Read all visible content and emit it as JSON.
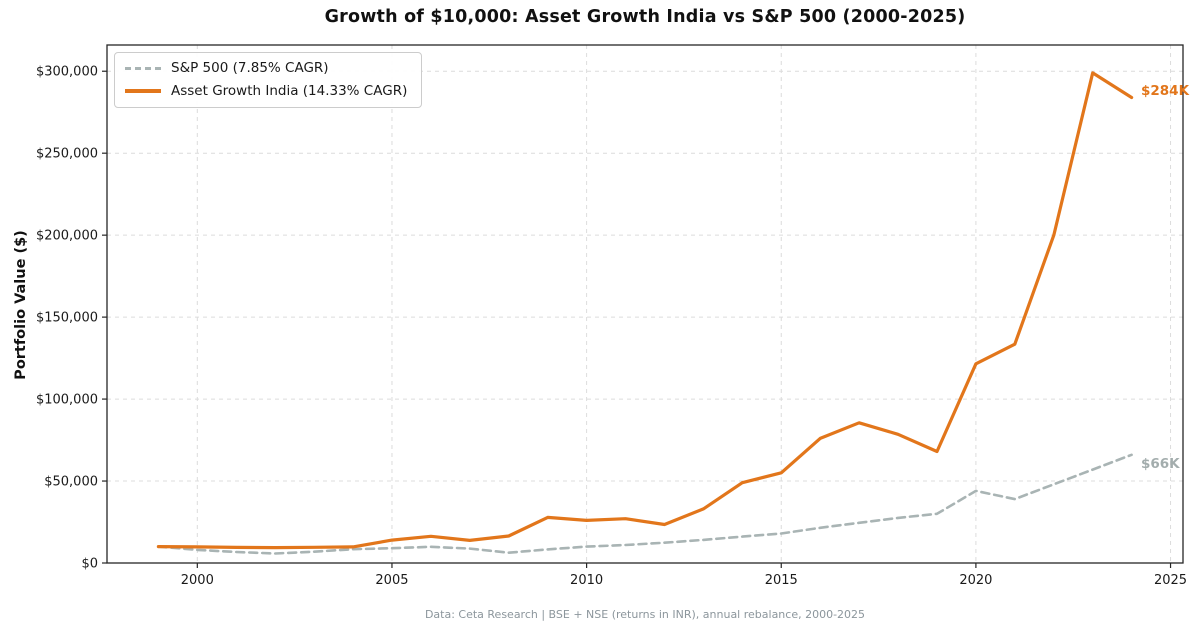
{
  "page": {
    "footer": "Data: Ceta Research | BSE + NSE (returns in INR), annual rebalance, 2000-2025"
  },
  "colors": {
    "background": "#ffffff",
    "grid": "#dcdcdc",
    "spine": "#262626",
    "tick_label": "#1a1a1a",
    "title": "#111111",
    "footer": "#8c969c",
    "sp500_line": "#a9b4b4",
    "india_line": "#e2761b"
  },
  "chart_data": {
    "type": "line",
    "title": "Growth of $10,000: Asset Growth India vs S&P 500 (2000-2025)",
    "xlabel": "",
    "ylabel": "Portfolio Value ($)",
    "x": [
      1999,
      2000,
      2001,
      2002,
      2003,
      2004,
      2005,
      2006,
      2007,
      2008,
      2009,
      2010,
      2011,
      2012,
      2013,
      2014,
      2015,
      2016,
      2017,
      2018,
      2019,
      2020,
      2021,
      2022,
      2023,
      2024
    ],
    "series": [
      {
        "name": "S&P 500 (7.85% CAGR)",
        "color": "#a9b4b4",
        "line_style": "dashed",
        "line_width": 2.6,
        "end_label": "$66K",
        "end_label_color": "#a3adad",
        "values": [
          10000,
          8000,
          6700,
          5800,
          6900,
          8400,
          9000,
          9900,
          8800,
          6300,
          8300,
          10000,
          11000,
          12400,
          14100,
          16100,
          18000,
          21500,
          24500,
          27500,
          30000,
          44000,
          39000,
          48000,
          57000,
          66000
        ]
      },
      {
        "name": "Asset Growth India (14.33% CAGR)",
        "color": "#e2761b",
        "line_style": "solid",
        "line_width": 3.2,
        "end_label": "$284K",
        "end_label_color": "#e2761b",
        "values": [
          10000,
          9800,
          9500,
          9400,
          9600,
          9800,
          14000,
          16300,
          13800,
          16500,
          27800,
          26000,
          27000,
          23500,
          33000,
          49000,
          55000,
          76000,
          85500,
          78500,
          68000,
          121500,
          133500,
          200000,
          299000,
          284000
        ]
      }
    ],
    "x_ticks": [
      2000,
      2005,
      2010,
      2015,
      2020,
      2025
    ],
    "y_ticks": [
      0,
      50000,
      100000,
      150000,
      200000,
      250000,
      300000
    ],
    "y_tick_labels": [
      "$0",
      "$50,000",
      "$100,000",
      "$150,000",
      "$200,000",
      "$250,000",
      "$300,000"
    ],
    "xlim": [
      1997.68,
      2025.32
    ],
    "ylim": [
      0,
      316000
    ],
    "grid": true,
    "grid_style": "dashed",
    "legend_position": "upper left"
  }
}
